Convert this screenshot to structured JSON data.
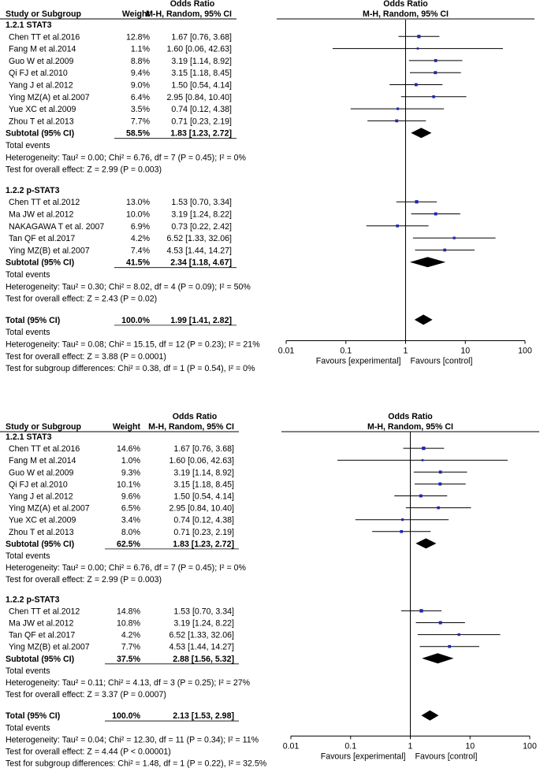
{
  "chart_data": [
    {
      "type": "forest",
      "header": {
        "col_study": "Study or Subgroup",
        "col_weight": "Weight",
        "col_or_title": "Odds Ratio",
        "col_or_sub": "M-H, Random, 95% CI",
        "plot_title": "Odds Ratio",
        "plot_sub": "M-H, Random, 95% CI"
      },
      "axis": {
        "scale": "log",
        "range": [
          0.01,
          100
        ],
        "ticks": [
          0.01,
          0.1,
          1,
          10,
          100
        ],
        "tick_labels": [
          "0.01",
          "0.1",
          "1",
          "10",
          "100"
        ],
        "left_label": "Favours [experimental]",
        "right_label": "Favours [control]"
      },
      "subgroups": [
        {
          "title": "1.2.1 STAT3",
          "studies": [
            {
              "name": "Chen TT et al.2016",
              "weight": "12.8%",
              "ci": "1.67 [0.76, 3.68]",
              "or": 1.67,
              "lo": 0.76,
              "hi": 3.68,
              "w": 12.8
            },
            {
              "name": "Fang M et al.2014",
              "weight": "1.1%",
              "ci": "1.60 [0.06, 42.63]",
              "or": 1.6,
              "lo": 0.06,
              "hi": 42.63,
              "w": 1.1
            },
            {
              "name": "Guo W et al.2009",
              "weight": "8.8%",
              "ci": "3.19 [1.14, 8.92]",
              "or": 3.19,
              "lo": 1.14,
              "hi": 8.92,
              "w": 8.8
            },
            {
              "name": "Qi FJ et al.2010",
              "weight": "9.4%",
              "ci": "3.15 [1.18, 8.45]",
              "or": 3.15,
              "lo": 1.18,
              "hi": 8.45,
              "w": 9.4
            },
            {
              "name": "Yang J et al.2012",
              "weight": "9.0%",
              "ci": "1.50 [0.54, 4.14]",
              "or": 1.5,
              "lo": 0.54,
              "hi": 4.14,
              "w": 9.0
            },
            {
              "name": "Ying MZ(A) et al.2007",
              "weight": "6.4%",
              "ci": "2.95 [0.84, 10.40]",
              "or": 2.95,
              "lo": 0.84,
              "hi": 10.4,
              "w": 6.4
            },
            {
              "name": "Yue XC et al.2009",
              "weight": "3.5%",
              "ci": "0.74 [0.12, 4.38]",
              "or": 0.74,
              "lo": 0.12,
              "hi": 4.38,
              "w": 3.5
            },
            {
              "name": "Zhou T et al.2013",
              "weight": "7.7%",
              "ci": "0.71 [0.23, 2.19]",
              "or": 0.71,
              "lo": 0.23,
              "hi": 2.19,
              "w": 7.7
            }
          ],
          "subtotal": {
            "label": "Subtotal (95% CI)",
            "weight": "58.5%",
            "ci": "1.83 [1.23, 2.72]",
            "or": 1.83,
            "lo": 1.23,
            "hi": 2.72
          },
          "total_events": "Total events",
          "heterogeneity": "Heterogeneity: Tau² = 0.00; Chi² = 6.76, df = 7 (P = 0.45); I² = 0%",
          "overall": "Test for overall effect: Z = 2.99 (P = 0.003)"
        },
        {
          "title": "1.2.2 p-STAT3",
          "studies": [
            {
              "name": "Chen TT et al.2012",
              "weight": "13.0%",
              "ci": "1.53 [0.70, 3.34]",
              "or": 1.53,
              "lo": 0.7,
              "hi": 3.34,
              "w": 13.0
            },
            {
              "name": "Ma JW et al.2012",
              "weight": "10.0%",
              "ci": "3.19 [1.24, 8.22]",
              "or": 3.19,
              "lo": 1.24,
              "hi": 8.22,
              "w": 10.0
            },
            {
              "name": "NAKAGAWA T et al. 2007",
              "weight": "6.9%",
              "ci": "0.73 [0.22, 2.42]",
              "or": 0.73,
              "lo": 0.22,
              "hi": 2.42,
              "w": 6.9
            },
            {
              "name": "Tan QF et al.2017",
              "weight": "4.2%",
              "ci": "6.52 [1.33, 32.06]",
              "or": 6.52,
              "lo": 1.33,
              "hi": 32.06,
              "w": 4.2
            },
            {
              "name": "Ying MZ(B) et al.2007",
              "weight": "7.4%",
              "ci": "4.53 [1.44, 14.27]",
              "or": 4.53,
              "lo": 1.44,
              "hi": 14.27,
              "w": 7.4
            }
          ],
          "subtotal": {
            "label": "Subtotal (95% CI)",
            "weight": "41.5%",
            "ci": "2.34 [1.18, 4.67]",
            "or": 2.34,
            "lo": 1.18,
            "hi": 4.67
          },
          "total_events": "Total events",
          "heterogeneity": "Heterogeneity: Tau² = 0.30; Chi² = 8.02, df = 4 (P = 0.09); I² = 50%",
          "overall": "Test for overall effect: Z = 2.43 (P = 0.02)"
        }
      ],
      "total": {
        "label": "Total (95% CI)",
        "weight": "100.0%",
        "ci": "1.99 [1.41, 2.82]",
        "or": 1.99,
        "lo": 1.41,
        "hi": 2.82
      },
      "total_events": "Total events",
      "heterogeneity": "Heterogeneity: Tau² = 0.08; Chi² = 15.15, df = 12 (P = 0.23); I² = 21%",
      "overall": "Test for overall effect: Z = 3.88 (P = 0.0001)",
      "subgroup_diff": "Test for subgroup differences: Chi² = 0.38, df = 1 (P = 0.54), I² = 0%"
    },
    {
      "type": "forest",
      "header": {
        "col_study": "Study or Subgroup",
        "col_weight": "Weight",
        "col_or_title": "Odds Ratio",
        "col_or_sub": "M-H, Random, 95% CI",
        "plot_title": "Odds Ratio",
        "plot_sub": "M-H, Random, 95% CI"
      },
      "axis": {
        "scale": "log",
        "range": [
          0.01,
          100
        ],
        "ticks": [
          0.01,
          0.1,
          1,
          10,
          100
        ],
        "tick_labels": [
          "0.01",
          "0.1",
          "1",
          "10",
          "100"
        ],
        "left_label": "Favours [experimental]",
        "right_label": "Favours [control]"
      },
      "subgroups": [
        {
          "title": "1.2.1 STAT3",
          "studies": [
            {
              "name": "Chen TT et al.2016",
              "weight": "14.6%",
              "ci": "1.67 [0.76, 3.68]",
              "or": 1.67,
              "lo": 0.76,
              "hi": 3.68,
              "w": 14.6
            },
            {
              "name": "Fang M et al.2014",
              "weight": "1.0%",
              "ci": "1.60 [0.06, 42.63]",
              "or": 1.6,
              "lo": 0.06,
              "hi": 42.63,
              "w": 1.0
            },
            {
              "name": "Guo W et al.2009",
              "weight": "9.3%",
              "ci": "3.19 [1.14, 8.92]",
              "or": 3.19,
              "lo": 1.14,
              "hi": 8.92,
              "w": 9.3
            },
            {
              "name": "Qi FJ et al.2010",
              "weight": "10.1%",
              "ci": "3.15 [1.18, 8.45]",
              "or": 3.15,
              "lo": 1.18,
              "hi": 8.45,
              "w": 10.1
            },
            {
              "name": "Yang J et al.2012",
              "weight": "9.6%",
              "ci": "1.50 [0.54, 4.14]",
              "or": 1.5,
              "lo": 0.54,
              "hi": 4.14,
              "w": 9.6
            },
            {
              "name": "Ying MZ(A) et al.2007",
              "weight": "6.5%",
              "ci": "2.95 [0.84, 10.40]",
              "or": 2.95,
              "lo": 0.84,
              "hi": 10.4,
              "w": 6.5
            },
            {
              "name": "Yue XC et al.2009",
              "weight": "3.4%",
              "ci": "0.74 [0.12, 4.38]",
              "or": 0.74,
              "lo": 0.12,
              "hi": 4.38,
              "w": 3.4
            },
            {
              "name": "Zhou T et al.2013",
              "weight": "8.0%",
              "ci": "0.71 [0.23, 2.19]",
              "or": 0.71,
              "lo": 0.23,
              "hi": 2.19,
              "w": 8.0
            }
          ],
          "subtotal": {
            "label": "Subtotal (95% CI)",
            "weight": "62.5%",
            "ci": "1.83 [1.23, 2.72]",
            "or": 1.83,
            "lo": 1.23,
            "hi": 2.72
          },
          "total_events": "Total events",
          "heterogeneity": "Heterogeneity: Tau² = 0.00; Chi² = 6.76, df = 7 (P = 0.45); I² = 0%",
          "overall": "Test for overall effect: Z = 2.99 (P = 0.003)"
        },
        {
          "title": "1.2.2 p-STAT3",
          "studies": [
            {
              "name": "Chen TT et al.2012",
              "weight": "14.8%",
              "ci": "1.53 [0.70, 3.34]",
              "or": 1.53,
              "lo": 0.7,
              "hi": 3.34,
              "w": 14.8
            },
            {
              "name": "Ma JW et al.2012",
              "weight": "10.8%",
              "ci": "3.19 [1.24, 8.22]",
              "or": 3.19,
              "lo": 1.24,
              "hi": 8.22,
              "w": 10.8
            },
            {
              "name": "Tan QF et al.2017",
              "weight": "4.2%",
              "ci": "6.52 [1.33, 32.06]",
              "or": 6.52,
              "lo": 1.33,
              "hi": 32.06,
              "w": 4.2
            },
            {
              "name": "Ying MZ(B) et al.2007",
              "weight": "7.7%",
              "ci": "4.53 [1.44, 14.27]",
              "or": 4.53,
              "lo": 1.44,
              "hi": 14.27,
              "w": 7.7
            }
          ],
          "subtotal": {
            "label": "Subtotal (95% CI)",
            "weight": "37.5%",
            "ci": "2.88 [1.56, 5.32]",
            "or": 2.88,
            "lo": 1.56,
            "hi": 5.32
          },
          "total_events": "Total events",
          "heterogeneity": "Heterogeneity: Tau² = 0.11; Chi² = 4.13, df = 3 (P = 0.25); I² = 27%",
          "overall": "Test for overall effect: Z = 3.37 (P = 0.0007)"
        }
      ],
      "total": {
        "label": "Total (95% CI)",
        "weight": "100.0%",
        "ci": "2.13 [1.53, 2.98]",
        "or": 2.13,
        "lo": 1.53,
        "hi": 2.98
      },
      "total_events": "Total events",
      "heterogeneity": "Heterogeneity: Tau² = 0.04; Chi² = 12.30, df = 11 (P = 0.34); I² = 11%",
      "overall": "Test for overall effect: Z = 4.44 (P < 0.00001)",
      "subgroup_diff": "Test for subgroup differences: Chi² = 1.48, df = 1 (P = 0.22), I² = 32.5%"
    }
  ],
  "colors": {
    "square": "#1f24b8",
    "line": "#000000",
    "diamond": "#000000"
  }
}
